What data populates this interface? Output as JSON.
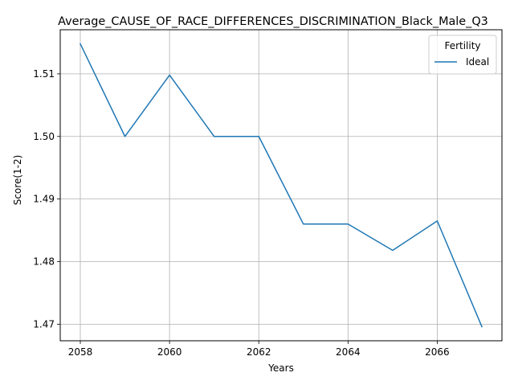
{
  "chart_data": {
    "type": "line",
    "title": "Average_CAUSE_OF_RACE_DIFFERENCES_DISCRIMINATION_Black_Male_Q3",
    "xlabel": "Years",
    "ylabel": "Score(1-2)",
    "x": [
      2058,
      2059,
      2060,
      2061,
      2062,
      2063,
      2064,
      2065,
      2066,
      2067
    ],
    "series": [
      {
        "name": "Ideal",
        "color": "#1f77b4",
        "values": [
          1.5148,
          1.5,
          1.5098,
          1.5,
          1.5,
          1.486,
          1.486,
          1.4818,
          1.4865,
          1.4696
        ]
      }
    ],
    "xlim": [
      2057.55,
      2067.45
    ],
    "ylim": [
      1.46735,
      1.51705
    ],
    "xticks": [
      2058,
      2060,
      2062,
      2064,
      2066
    ],
    "yticks": [
      1.47,
      1.48,
      1.49,
      1.5,
      1.51
    ],
    "ytick_labels": [
      "1.47",
      "1.48",
      "1.49",
      "1.50",
      "1.51"
    ],
    "grid": true,
    "legend": {
      "title": "Fertility",
      "position": "top-right"
    }
  }
}
